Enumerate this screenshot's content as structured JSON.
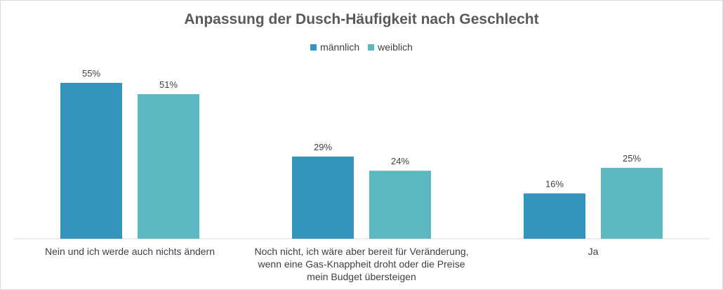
{
  "chart_data": {
    "type": "bar",
    "title": "Anpassung der Dusch-Häufigkeit nach Geschlecht",
    "categories": [
      [
        "Nein und ich werde auch nichts ändern"
      ],
      [
        "Noch nicht, ich wäre aber bereit für Veränderung,",
        "wenn eine Gas-Knappheit droht oder die Preise",
        "mein Budget übersteigen"
      ],
      [
        "Ja"
      ]
    ],
    "series": [
      {
        "name": "männlich",
        "color": "#3594bd",
        "values": [
          55,
          29,
          16
        ],
        "labels": [
          "55%",
          "29%",
          "16%"
        ]
      },
      {
        "name": "weiblich",
        "color": "#5bb8c1",
        "values": [
          51,
          24,
          25
        ],
        "labels": [
          "51%",
          "24%",
          "25%"
        ]
      }
    ],
    "ylim": [
      0,
      60
    ],
    "legend_position": "top",
    "grid": false
  }
}
